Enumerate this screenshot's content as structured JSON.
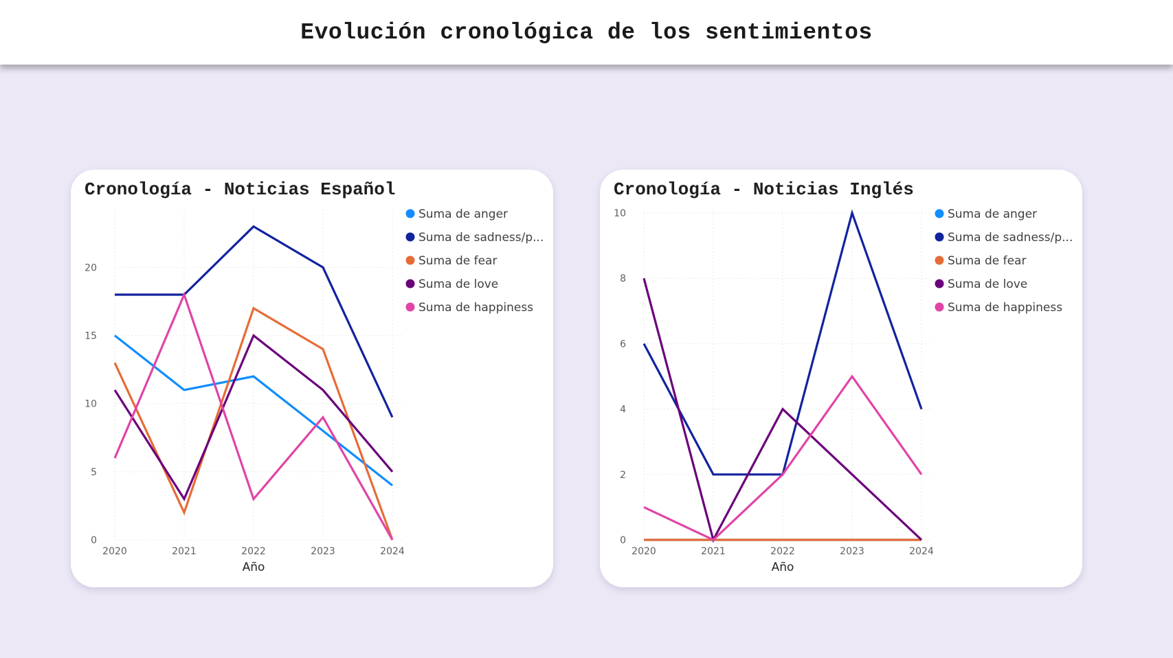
{
  "page": {
    "title": "Evolución cronológica de los sentimientos"
  },
  "charts": [
    {
      "title": "Cronología - Noticias Español"
    },
    {
      "title": "Cronología - Noticias Inglés"
    }
  ],
  "chart_data": [
    {
      "type": "line",
      "title": "Cronología - Noticias Español",
      "xlabel": "Año",
      "ylabel": "",
      "x": [
        "2020",
        "2021",
        "2022",
        "2023",
        "2024"
      ],
      "ylim": [
        0,
        24
      ],
      "yticks": [
        0,
        5,
        10,
        15,
        20
      ],
      "grid": true,
      "legend_position": "right",
      "series": [
        {
          "name": "Suma de anger",
          "color": "#118DFF",
          "values": [
            15,
            11,
            12,
            8,
            4
          ]
        },
        {
          "name": "Suma de sadness/p...",
          "color": "#12239E",
          "values": [
            18,
            18,
            23,
            20,
            9
          ]
        },
        {
          "name": "Suma de fear",
          "color": "#E66C37",
          "values": [
            13,
            2,
            17,
            14,
            0
          ]
        },
        {
          "name": "Suma de love",
          "color": "#6B007B",
          "values": [
            11,
            3,
            15,
            11,
            5
          ]
        },
        {
          "name": "Suma de happiness",
          "color": "#E044A7",
          "values": [
            6,
            18,
            3,
            9,
            0
          ]
        }
      ]
    },
    {
      "type": "line",
      "title": "Cronología - Noticias Inglés",
      "xlabel": "Año",
      "ylabel": "",
      "x": [
        "2020",
        "2021",
        "2022",
        "2023",
        "2024"
      ],
      "ylim": [
        0,
        10
      ],
      "yticks": [
        0,
        2,
        4,
        6,
        8,
        10
      ],
      "grid": true,
      "legend_position": "right",
      "series": [
        {
          "name": "Suma de anger",
          "color": "#118DFF",
          "values": [
            0,
            0,
            0,
            0,
            0
          ]
        },
        {
          "name": "Suma de sadness/p...",
          "color": "#12239E",
          "values": [
            6,
            2,
            2,
            10,
            4
          ]
        },
        {
          "name": "Suma de fear",
          "color": "#E66C37",
          "values": [
            0,
            0,
            0,
            0,
            0
          ]
        },
        {
          "name": "Suma de love",
          "color": "#6B007B",
          "values": [
            8,
            0,
            4,
            2,
            0
          ]
        },
        {
          "name": "Suma de happiness",
          "color": "#E044A7",
          "values": [
            1,
            0,
            2,
            5,
            2
          ]
        }
      ]
    }
  ]
}
